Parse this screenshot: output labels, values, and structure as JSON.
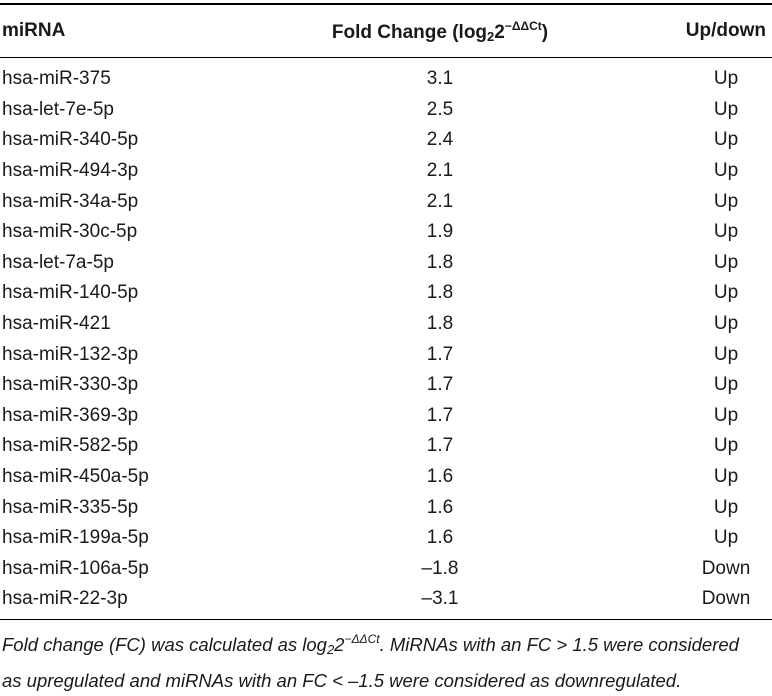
{
  "table": {
    "headers": {
      "mirna": "miRNA",
      "fold_change_prefix": "Fold Change (log",
      "fold_change_sub": "2",
      "fold_change_base": "2",
      "fold_change_sup": "−ΔΔCt",
      "fold_change_suffix": ")",
      "updown": "Up/down"
    },
    "rows": [
      {
        "mirna": "hsa-miR-375",
        "fc": "3.1",
        "dir": "Up"
      },
      {
        "mirna": "hsa-let-7e-5p",
        "fc": "2.5",
        "dir": "Up"
      },
      {
        "mirna": "hsa-miR-340-5p",
        "fc": "2.4",
        "dir": "Up"
      },
      {
        "mirna": "hsa-miR-494-3p",
        "fc": "2.1",
        "dir": "Up"
      },
      {
        "mirna": "hsa-miR-34a-5p",
        "fc": "2.1",
        "dir": "Up"
      },
      {
        "mirna": "hsa-miR-30c-5p",
        "fc": "1.9",
        "dir": "Up"
      },
      {
        "mirna": "hsa-let-7a-5p",
        "fc": "1.8",
        "dir": "Up"
      },
      {
        "mirna": "hsa-miR-140-5p",
        "fc": "1.8",
        "dir": "Up"
      },
      {
        "mirna": "hsa-miR-421",
        "fc": "1.8",
        "dir": "Up"
      },
      {
        "mirna": "hsa-miR-132-3p",
        "fc": "1.7",
        "dir": "Up"
      },
      {
        "mirna": "hsa-miR-330-3p",
        "fc": "1.7",
        "dir": "Up"
      },
      {
        "mirna": "hsa-miR-369-3p",
        "fc": "1.7",
        "dir": "Up"
      },
      {
        "mirna": "hsa-miR-582-5p",
        "fc": "1.7",
        "dir": "Up"
      },
      {
        "mirna": "hsa-miR-450a-5p",
        "fc": "1.6",
        "dir": "Up"
      },
      {
        "mirna": "hsa-miR-335-5p",
        "fc": "1.6",
        "dir": "Up"
      },
      {
        "mirna": "hsa-miR-199a-5p",
        "fc": "1.6",
        "dir": "Up"
      },
      {
        "mirna": "hsa-miR-106a-5p",
        "fc": "–1.8",
        "dir": "Down"
      },
      {
        "mirna": "hsa-miR-22-3p",
        "fc": "–3.1",
        "dir": "Down"
      }
    ]
  },
  "footnote": {
    "part1": "Fold change (FC) was calculated as log",
    "sub": "2",
    "base": "2",
    "sup": "−ΔΔCt",
    "part2": ". MiRNAs with an FC > 1.5 were considered",
    "line2": "as upregulated and miRNAs with an FC < –1.5 were considered as downregulated."
  }
}
